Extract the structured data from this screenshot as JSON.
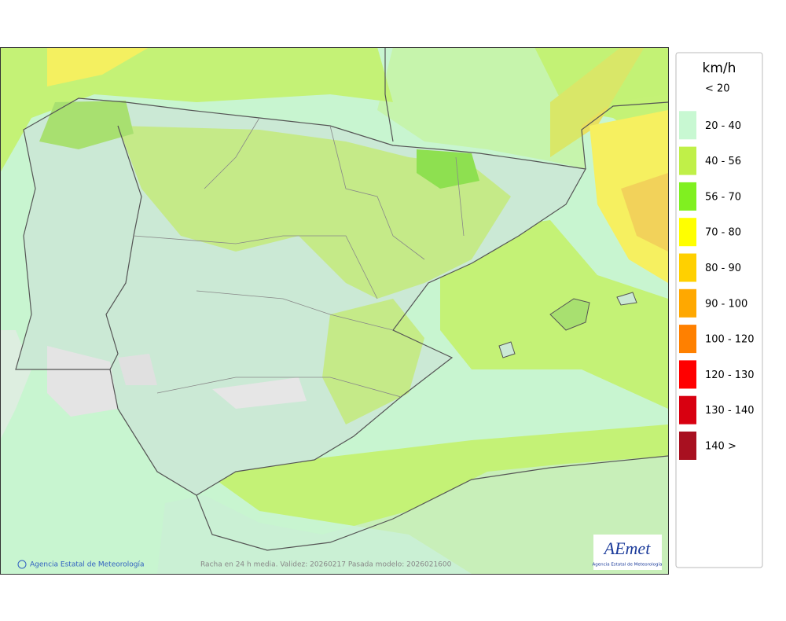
{
  "legend": {
    "unit": "km/h",
    "items": [
      {
        "label": "< 20",
        "color": "#ffffff"
      },
      {
        "label": "20 - 40",
        "color": "#c8f8d2"
      },
      {
        "label": "40 - 56",
        "color": "#c0f048"
      },
      {
        "label": "56 - 70",
        "color": "#80f020"
      },
      {
        "label": "70 - 80",
        "color": "#ffff00"
      },
      {
        "label": "80 - 90",
        "color": "#ffd000"
      },
      {
        "label": "90 - 100",
        "color": "#ffa800"
      },
      {
        "label": "100 - 120",
        "color": "#ff8000"
      },
      {
        "label": "120 - 130",
        "color": "#ff0000"
      },
      {
        "label": "130 - 140",
        "color": "#d80010"
      },
      {
        "label": "140 >",
        "color": "#a81020"
      }
    ]
  },
  "footer": {
    "copyright": "Agencia Estatal de Meteorología",
    "caption": "Racha en 24 h media. Validez: 20260217 Pasada modelo: 2026021600"
  },
  "logo": {
    "name": "AEmet",
    "subtitle": "Agencia Estatal de Meteorología"
  }
}
